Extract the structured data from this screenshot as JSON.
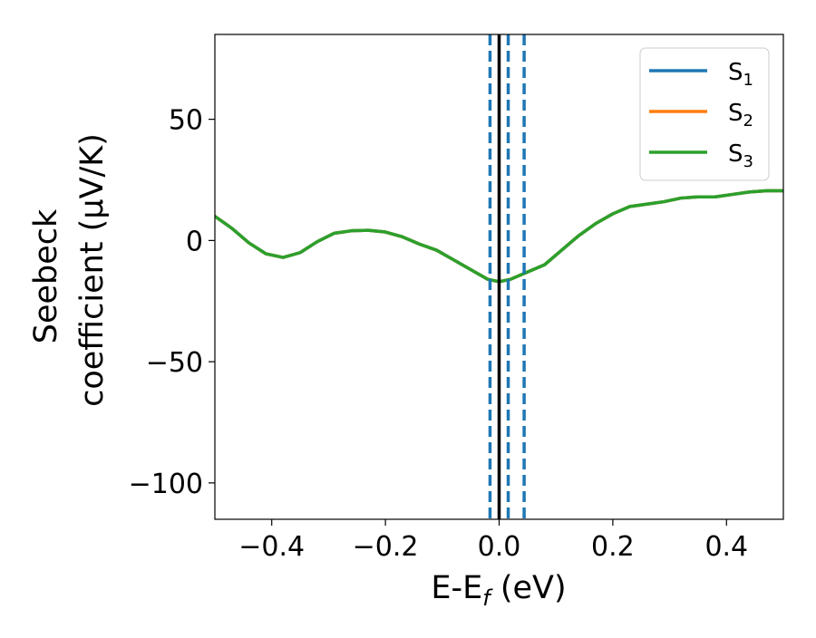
{
  "chart_data": {
    "type": "line",
    "xlabel": "E-E",
    "xlabel_sub": "f",
    "xlabel_unit": " (eV)",
    "ylabel_line1": "Seebeck",
    "ylabel_line2": "coefficient  (μV/K)",
    "xlim": [
      -0.5,
      0.5
    ],
    "ylim": [
      -115,
      85
    ],
    "x_ticks": [
      -0.4,
      -0.2,
      0.0,
      0.2,
      0.4
    ],
    "x_tick_labels": [
      "−0.4",
      "−0.2",
      "0.0",
      "0.2",
      "0.4"
    ],
    "y_ticks": [
      50,
      0,
      -50,
      -100
    ],
    "y_tick_labels": [
      "50",
      "0",
      "−50",
      "−100"
    ],
    "grid": false,
    "legend_position": "top-right",
    "legend": [
      {
        "base": "S",
        "sub": "1",
        "color": "#1f77b4"
      },
      {
        "base": "S",
        "sub": "2",
        "color": "#ff7f0e"
      },
      {
        "base": "S",
        "sub": "3",
        "color": "#2ca02c"
      }
    ],
    "series": [
      {
        "name": "S1",
        "color": "#1f77b4",
        "x": [
          -0.5,
          -0.47,
          -0.44,
          -0.41,
          -0.38,
          -0.35,
          -0.32,
          -0.29,
          -0.26,
          -0.23,
          -0.2,
          -0.17,
          -0.14,
          -0.11,
          -0.08,
          -0.05,
          -0.02,
          0.0,
          0.02,
          0.05,
          0.08,
          0.11,
          0.14,
          0.17,
          0.2,
          0.23,
          0.26,
          0.29,
          0.32,
          0.35,
          0.38,
          0.41,
          0.44,
          0.47,
          0.5
        ],
        "y": [
          10,
          5,
          -1,
          -5.5,
          -7,
          -5,
          -0.5,
          3,
          4,
          4.2,
          3.5,
          1.5,
          -1.5,
          -4,
          -8,
          -12,
          -16,
          -17,
          -16,
          -13,
          -10,
          -4,
          2,
          7,
          11,
          14,
          15,
          16,
          17.5,
          18,
          18,
          19,
          20,
          20.5,
          20.5
        ]
      },
      {
        "name": "S2",
        "color": "#ff7f0e",
        "x": [
          -0.5,
          -0.47,
          -0.44,
          -0.41,
          -0.38,
          -0.35,
          -0.32,
          -0.29,
          -0.26,
          -0.23,
          -0.2,
          -0.17,
          -0.14,
          -0.11,
          -0.08,
          -0.05,
          -0.02,
          0.0,
          0.02,
          0.05,
          0.08,
          0.11,
          0.14,
          0.17,
          0.2,
          0.23,
          0.26,
          0.29,
          0.32,
          0.35,
          0.38,
          0.41,
          0.44,
          0.47,
          0.5
        ],
        "y": [
          10,
          5,
          -1,
          -5.5,
          -7,
          -5,
          -0.5,
          3,
          4,
          4.2,
          3.5,
          1.5,
          -1.5,
          -4,
          -8,
          -12,
          -16,
          -17,
          -16,
          -13,
          -10,
          -4,
          2,
          7,
          11,
          14,
          15,
          16,
          17.5,
          18,
          18,
          19,
          20,
          20.5,
          20.5
        ]
      },
      {
        "name": "S3",
        "color": "#2ca02c",
        "x": [
          -0.5,
          -0.47,
          -0.44,
          -0.41,
          -0.38,
          -0.35,
          -0.32,
          -0.29,
          -0.26,
          -0.23,
          -0.2,
          -0.17,
          -0.14,
          -0.11,
          -0.08,
          -0.05,
          -0.02,
          0.0,
          0.02,
          0.05,
          0.08,
          0.11,
          0.14,
          0.17,
          0.2,
          0.23,
          0.26,
          0.29,
          0.32,
          0.35,
          0.38,
          0.41,
          0.44,
          0.47,
          0.5
        ],
        "y": [
          10,
          5,
          -1,
          -5.5,
          -7,
          -5,
          -0.5,
          3,
          4,
          4.2,
          3.5,
          1.5,
          -1.5,
          -4,
          -8,
          -12,
          -16,
          -17,
          -16,
          -13,
          -10,
          -4,
          2,
          7,
          11,
          14,
          15,
          16,
          17.5,
          18,
          18,
          19,
          20,
          20.5,
          20.5
        ]
      }
    ],
    "vertical_lines": [
      {
        "x": -0.016,
        "style": "dashed",
        "color": "#1f77b4"
      },
      {
        "x": 0.016,
        "style": "dashed",
        "color": "#1f77b4"
      },
      {
        "x": 0.044,
        "style": "dashed",
        "color": "#1f77b4"
      },
      {
        "x": 0.0,
        "style": "solid",
        "color": "#000000"
      }
    ]
  }
}
